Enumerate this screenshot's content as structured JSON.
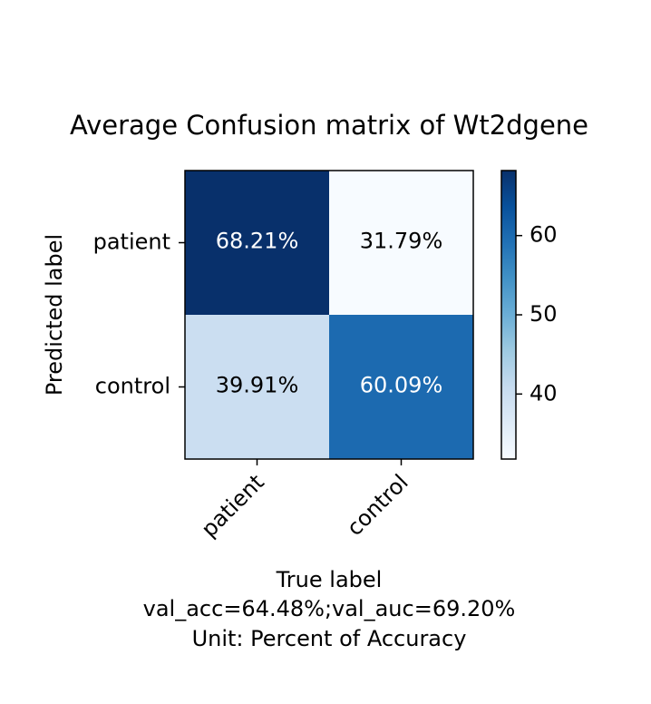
{
  "chart_data": {
    "type": "heatmap",
    "title": "Average Confusion matrix of Wt2dgene",
    "xlabel": "True label",
    "ylabel": "Predicted label",
    "footer_lines": [
      "val_acc=64.48%;val_auc=69.20%",
      "Unit: Percent of Accuracy"
    ],
    "x_categories": [
      "patient",
      "control"
    ],
    "y_categories": [
      "patient",
      "control"
    ],
    "values": [
      [
        68.21,
        31.79
      ],
      [
        39.91,
        60.09
      ]
    ],
    "cell_labels": [
      [
        "68.21%",
        "31.79%"
      ],
      [
        "39.91%",
        "60.09%"
      ]
    ],
    "colormap": "Blues",
    "colorbar": {
      "min": 31.79,
      "max": 68.21,
      "ticks": [
        40,
        50,
        60
      ]
    },
    "colors": {
      "low": "#f7fbff",
      "high": "#08306b"
    }
  }
}
